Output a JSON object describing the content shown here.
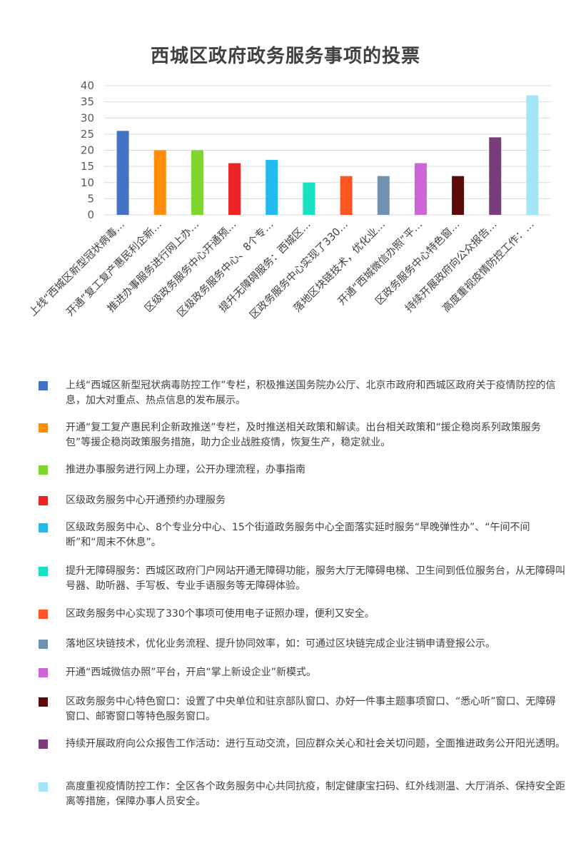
{
  "chart_data": {
    "type": "bar",
    "title": "西城区政府政务服务事项的投票",
    "xlabel": "",
    "ylabel": "",
    "ylim": [
      0,
      40
    ],
    "yticks": [
      0,
      5,
      10,
      15,
      20,
      25,
      30,
      35,
      40
    ],
    "grid": true,
    "legend": "bottom",
    "categories": [
      "上线“西城区新型冠状病毒…",
      "开通“复工复产惠民利企新…",
      "推进办事服务进行网上办…",
      "区级政务服务中心开通预…",
      "区级政务服务中心、8个专…",
      "提升无障碍服务：西城区…",
      "区政务服务中心实现了330…",
      "落地区块链技术，优化业…",
      "开通“西城微信办照”平…",
      "区政务服务中心特色窗…",
      "持续开展政府向公众报告…",
      "高度重视疫情防控工作：…"
    ],
    "values": [
      26,
      20,
      20,
      16,
      17,
      10,
      12,
      12,
      16,
      12,
      24,
      37
    ],
    "colors": [
      "#4472C4",
      "#FF8C0A",
      "#7ED62F",
      "#EE2424",
      "#22BBEE",
      "#16E0C0",
      "#FF5522",
      "#6E92B0",
      "#CC66D6",
      "#5C0A0A",
      "#7A3C7A",
      "#A2E6F8"
    ],
    "legend_entries": [
      "上线“西城区新型冠状病毒防控工作”专栏，积极推送国务院办公厅、北京市政府和西城区政府关于疫情防控的信息，加大对重点、热点信息的发布展示。",
      "开通“复工复产惠民利企新政推送”专栏，及时推送相关政策和解读。出台相关政策和“援企稳岗系列政策服务包”等援企稳岗政策服务措施，助力企业战胜疫情，恢复生产，稳定就业。",
      "推进办事服务进行网上办理，公开办理流程，办事指南",
      "区级政务服务中心开通预约办理服务",
      "区级政务服务中心、8个专业分中心、15个街道政务服务中心全面落实延时服务“早晚弹性办”、“午间不间断”和“周末不休息”。",
      "提升无障碍服务：西城区政府门户网站开通无障碍功能，服务大厅无障碍电梯、卫生间到低位服务台，从无障碍叫号器、助听器、手写板、专业手语服务等无障碍体验。",
      "区政务服务中心实现了330个事项可使用电子证照办理，便利又安全。",
      "落地区块链技术，优化业务流程、提升协同效率，如：可通过区块链完成企业注销申请登报公示。",
      "开通“西城微信办照”平台，开启“掌上新设企业”新模式。",
      "区政务服务中心特色窗口：设置了中央单位和驻京部队窗口、办好一件事主题事项窗口、“悉心听”窗口、无障碍窗口、邮寄窗口等特色服务窗口。",
      "持续开展政府向公众报告工作活动：进行互动交流，回应群众关心和社会关切问题，全面推进政务公开阳光透明。",
      "高度重视疫情防控工作：全区各个政务服务中心共同抗疫，制定健康宝扫码、红外线测温、大厅消杀、保持安全距离等措施，保障办事人员安全。"
    ]
  }
}
